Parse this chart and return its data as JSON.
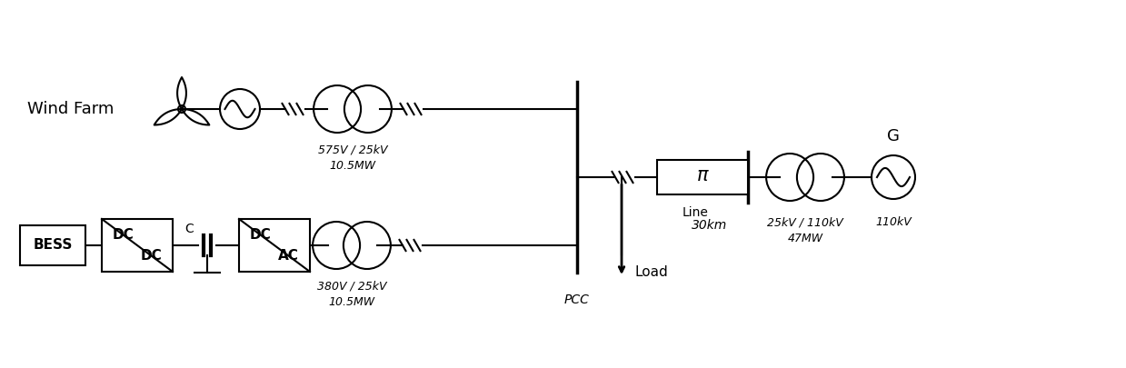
{
  "bg_color": "#ffffff",
  "line_color": "#000000",
  "lw": 1.5,
  "wind_farm_text": "Wind Farm",
  "bess_text": "BESS",
  "dc_dc_top": "DC",
  "dc_dc_bot": "DC",
  "dc_ac_top": "DC",
  "dc_ac_bot": "AC",
  "transformer1_label": [
    "575V / 25kV",
    "10.5MW"
  ],
  "transformer2_label": [
    "380V / 25kV",
    "10.5MW"
  ],
  "line_label_line": "Line",
  "line_label_km": "30km",
  "transformer3_label": [
    "25kV / 110kV",
    "47MW"
  ],
  "voltage_110kV": "110kV",
  "load_text": "Load",
  "pcc_text": "PCC",
  "pi_text": "π",
  "G_text": "G",
  "C_text": "C"
}
